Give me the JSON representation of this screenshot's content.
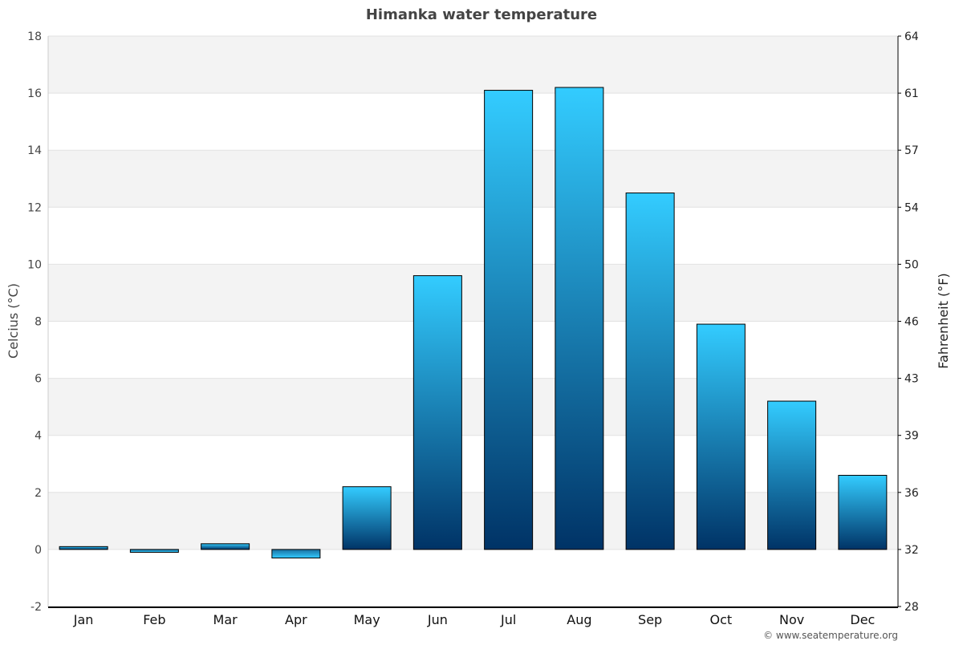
{
  "chart_data": {
    "type": "bar",
    "title": "Himanka water temperature",
    "ylabel": "Celcius (°C)",
    "y2label": "Fahrenheit (°F)",
    "categories": [
      "Jan",
      "Feb",
      "Mar",
      "Apr",
      "May",
      "Jun",
      "Jul",
      "Aug",
      "Sep",
      "Oct",
      "Nov",
      "Dec"
    ],
    "values": [
      0.1,
      -0.1,
      0.2,
      -0.3,
      2.2,
      9.6,
      16.1,
      16.2,
      12.5,
      7.9,
      5.2,
      2.6
    ],
    "ylim": [
      -2,
      18
    ],
    "yticks": [
      -2,
      0,
      2,
      4,
      6,
      8,
      10,
      12,
      14,
      16,
      18
    ],
    "y2ticks": [
      "28",
      "32",
      "36",
      "39",
      "43",
      "46",
      "50",
      "54",
      "57",
      "61",
      "64"
    ],
    "grid": true,
    "colors": {
      "bar_top": "#33ccff",
      "bar_bottom": "#003366",
      "band": "#f3f3f3",
      "title": "#444444"
    }
  },
  "footer": {
    "credit": "© www.seatemperature.org"
  }
}
